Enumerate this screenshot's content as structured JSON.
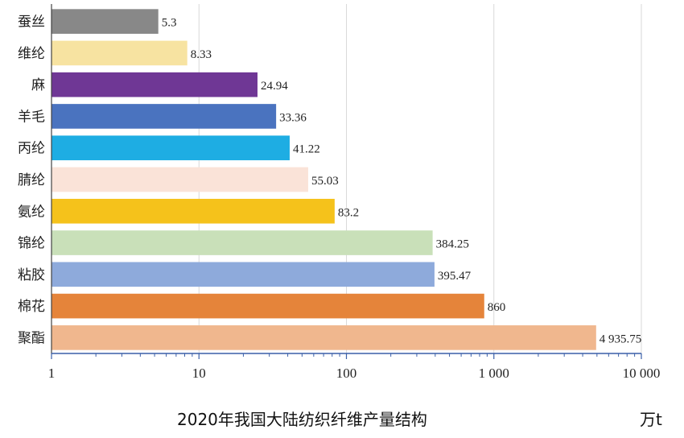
{
  "chart_data": {
    "type": "bar",
    "orientation": "horizontal",
    "title": "2020年我国大陆纺织纤维产量结构",
    "unit": "万t",
    "x_scale": "log",
    "xlim": [
      1,
      10000
    ],
    "grid": true,
    "x_ticks": [
      {
        "value": 1,
        "label": "1"
      },
      {
        "value": 10,
        "label": "10"
      },
      {
        "value": 100,
        "label": "100"
      },
      {
        "value": 1000,
        "label": "1 000"
      },
      {
        "value": 10000,
        "label": "10 000"
      }
    ],
    "bars": [
      {
        "category": "蚕丝",
        "value": 5.3,
        "label": "5.3",
        "color": "#888888"
      },
      {
        "category": "维纶",
        "value": 8.33,
        "label": "8.33",
        "color": "#f7e3a1"
      },
      {
        "category": "麻",
        "value": 24.94,
        "label": "24.94",
        "color": "#6f3795"
      },
      {
        "category": "羊毛",
        "value": 33.36,
        "label": "33.36",
        "color": "#4a73bf"
      },
      {
        "category": "丙纶",
        "value": 41.22,
        "label": "41.22",
        "color": "#1eade3"
      },
      {
        "category": "腈纶",
        "value": 55.03,
        "label": "55.03",
        "color": "#fae3d8"
      },
      {
        "category": "氨纶",
        "value": 83.2,
        "label": "83.2",
        "color": "#f5c21b"
      },
      {
        "category": "锦纶",
        "value": 384.25,
        "label": "384.25",
        "color": "#c9e0b9"
      },
      {
        "category": "粘胶",
        "value": 395.47,
        "label": "395.47",
        "color": "#8eaadb"
      },
      {
        "category": "棉花",
        "value": 860,
        "label": "860",
        "color": "#e5843a"
      },
      {
        "category": "聚酯",
        "value": 4935.75,
        "label": "4 935.75",
        "color": "#f0b78e"
      }
    ]
  }
}
